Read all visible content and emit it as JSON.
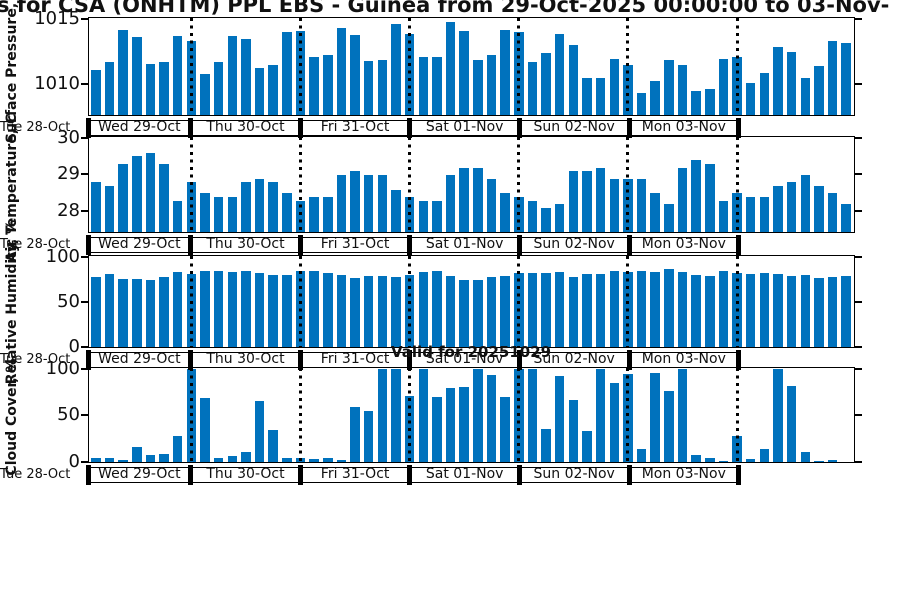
{
  "title": "s for CSA (ONHTM) PPL EBS  - Guinea from 29-Oct-2025 00:00:00 to 03-Nov-",
  "annotations": {
    "valid_label": "Valid for 20251029"
  },
  "x_axis": {
    "origin_label": "Tue 28-Oct",
    "day_labels": [
      "Wed 29-Oct",
      "Thu 30-Oct",
      "Fri 31-Oct",
      "Sat 01-Nov",
      "Sun 02-Nov",
      "Mon 03-Nov"
    ],
    "bars_per_day": 8,
    "step_hours": 3
  },
  "style": {
    "bar_color": "#0072BD",
    "axis_color": "#111111",
    "grid_style": "dotted"
  },
  "chart_data": [
    {
      "type": "bar",
      "ylabel": "Surface Pressure, mbar",
      "yticks": [
        1010,
        1015
      ],
      "ylim": [
        1007.7,
        1015
      ],
      "legend": "none",
      "values": [
        1011.1,
        1011.7,
        1014.2,
        1013.6,
        1011.6,
        1011.7,
        1013.7,
        1013.3,
        1010.8,
        1011.7,
        1013.7,
        1013.5,
        1011.3,
        1011.5,
        1014.0,
        1014.1,
        1012.1,
        1012.3,
        1014.3,
        1013.8,
        1011.8,
        1011.9,
        1014.6,
        1013.9,
        1012.1,
        1012.1,
        1014.8,
        1014.1,
        1011.9,
        1012.3,
        1014.2,
        1014.0,
        1011.7,
        1012.4,
        1013.9,
        1013.0,
        1010.5,
        1010.5,
        1012.0,
        1011.5,
        1009.4,
        1010.3,
        1011.9,
        1011.5,
        1009.5,
        1009.7,
        1012.0,
        1012.1,
        1010.1,
        1010.9,
        1012.9,
        1012.5,
        1010.5,
        1011.4,
        1013.3,
        1013.2
      ]
    },
    {
      "type": "bar",
      "ylabel": "Air Temperature, C",
      "yticks": [
        28,
        29,
        30
      ],
      "ylim": [
        27.45,
        30
      ],
      "legend": "none",
      "values": [
        28.8,
        28.7,
        29.3,
        29.5,
        29.6,
        29.3,
        28.3,
        28.8,
        28.5,
        28.4,
        28.4,
        28.8,
        28.9,
        28.8,
        28.5,
        28.3,
        28.4,
        28.4,
        29.0,
        29.1,
        29.0,
        29.0,
        28.6,
        28.4,
        28.3,
        28.3,
        29.0,
        29.2,
        29.2,
        28.9,
        28.5,
        28.4,
        28.3,
        28.1,
        28.2,
        29.1,
        29.1,
        29.2,
        28.9,
        28.9,
        28.9,
        28.5,
        28.2,
        29.2,
        29.4,
        29.3,
        28.3,
        28.5,
        28.4,
        28.4,
        28.7,
        28.8,
        29.0,
        28.7,
        28.5,
        28.2
      ]
    },
    {
      "type": "bar",
      "ylabel": "Relative Humidity, %",
      "yticks": [
        0,
        50,
        100
      ],
      "ylim": [
        0,
        100
      ],
      "legend": "none",
      "values": [
        78,
        81,
        76,
        76,
        75,
        78,
        83,
        81,
        84,
        84,
        83,
        84,
        82,
        80,
        80,
        85,
        85,
        82,
        80,
        77,
        79,
        79,
        78,
        80,
        83,
        84,
        79,
        74,
        74,
        78,
        79,
        82,
        82,
        82,
        83,
        78,
        81,
        81,
        84,
        83,
        84,
        83,
        87,
        83,
        80,
        79,
        84,
        82,
        81,
        82,
        81,
        79,
        80,
        77,
        78,
        79
      ]
    },
    {
      "type": "bar",
      "ylabel": "Cloud Cover, %",
      "yticks": [
        0,
        50,
        100
      ],
      "ylim": [
        0,
        100
      ],
      "legend": "none",
      "values": [
        4,
        4,
        2,
        16,
        8,
        9,
        28,
        100,
        69,
        4,
        7,
        11,
        66,
        34,
        4,
        4,
        3,
        4,
        2,
        59,
        55,
        100,
        100,
        71,
        100,
        70,
        80,
        81,
        100,
        94,
        70,
        100,
        100,
        36,
        92,
        67,
        33,
        100,
        85,
        95,
        14,
        96,
        76,
        100,
        8,
        4,
        1,
        28,
        3,
        14,
        100,
        82,
        11,
        1,
        2,
        0
      ]
    }
  ]
}
